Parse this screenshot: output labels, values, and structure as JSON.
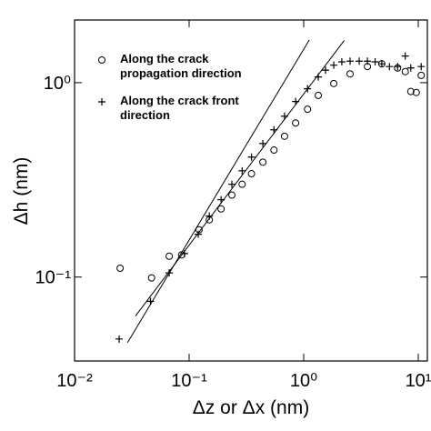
{
  "chart_data": {
    "type": "scatter",
    "xlabel": "Δz or Δx (nm)",
    "ylabel": "Δh (nm)",
    "xscale": "log",
    "yscale": "log",
    "xlim": [
      0.01,
      12
    ],
    "ylim": [
      0.037,
      2.1
    ],
    "xticks": [
      {
        "value": 0.01,
        "label": "10⁻²"
      },
      {
        "value": 0.1,
        "label": "10⁻¹"
      },
      {
        "value": 1,
        "label": "10⁰"
      },
      {
        "value": 10,
        "label": "10¹"
      }
    ],
    "yticks": [
      {
        "value": 0.1,
        "label": "10⁻¹"
      },
      {
        "value": 1,
        "label": "10⁰"
      }
    ],
    "legend": "top-left",
    "series": [
      {
        "name": "Along the crack propagation direction",
        "marker": "circle",
        "color": "#000000",
        "x": [
          0.025,
          0.047,
          0.067,
          0.086,
          0.122,
          0.15,
          0.19,
          0.236,
          0.29,
          0.35,
          0.44,
          0.55,
          0.68,
          0.85,
          1.08,
          1.34,
          1.83,
          2.54,
          3.6,
          4.8,
          6.6,
          7.7,
          8.6,
          9.6,
          10.6
        ],
        "values": [
          0.111,
          0.099,
          0.128,
          0.13,
          0.175,
          0.197,
          0.224,
          0.264,
          0.3,
          0.34,
          0.39,
          0.45,
          0.53,
          0.62,
          0.73,
          0.86,
          0.99,
          1.11,
          1.21,
          1.25,
          1.19,
          1.14,
          0.9,
          0.89,
          1.09
        ]
      },
      {
        "name": "Along the crack front direction",
        "marker": "plus",
        "color": "#000000",
        "x": [
          0.0245,
          0.046,
          0.067,
          0.091,
          0.12,
          0.15,
          0.19,
          0.236,
          0.29,
          0.35,
          0.44,
          0.55,
          0.68,
          0.85,
          1.08,
          1.34,
          1.55,
          1.83,
          2.15,
          2.54,
          3.05,
          3.6,
          4.2,
          4.8,
          5.6,
          6.6,
          7.7,
          8.6,
          10.6
        ],
        "values": [
          0.048,
          0.075,
          0.105,
          0.132,
          0.166,
          0.206,
          0.25,
          0.3,
          0.352,
          0.414,
          0.486,
          0.572,
          0.672,
          0.8,
          0.93,
          1.07,
          1.16,
          1.23,
          1.28,
          1.29,
          1.29,
          1.29,
          1.28,
          1.25,
          1.21,
          1.21,
          1.37,
          1.19,
          1.21
        ]
      }
    ],
    "fit_lines": [
      {
        "x": [
          0.034,
          2.26
        ],
        "y": [
          0.063,
          1.65
        ]
      },
      {
        "x": [
          0.029,
          1.12
        ],
        "y": [
          0.046,
          1.66
        ]
      }
    ]
  }
}
